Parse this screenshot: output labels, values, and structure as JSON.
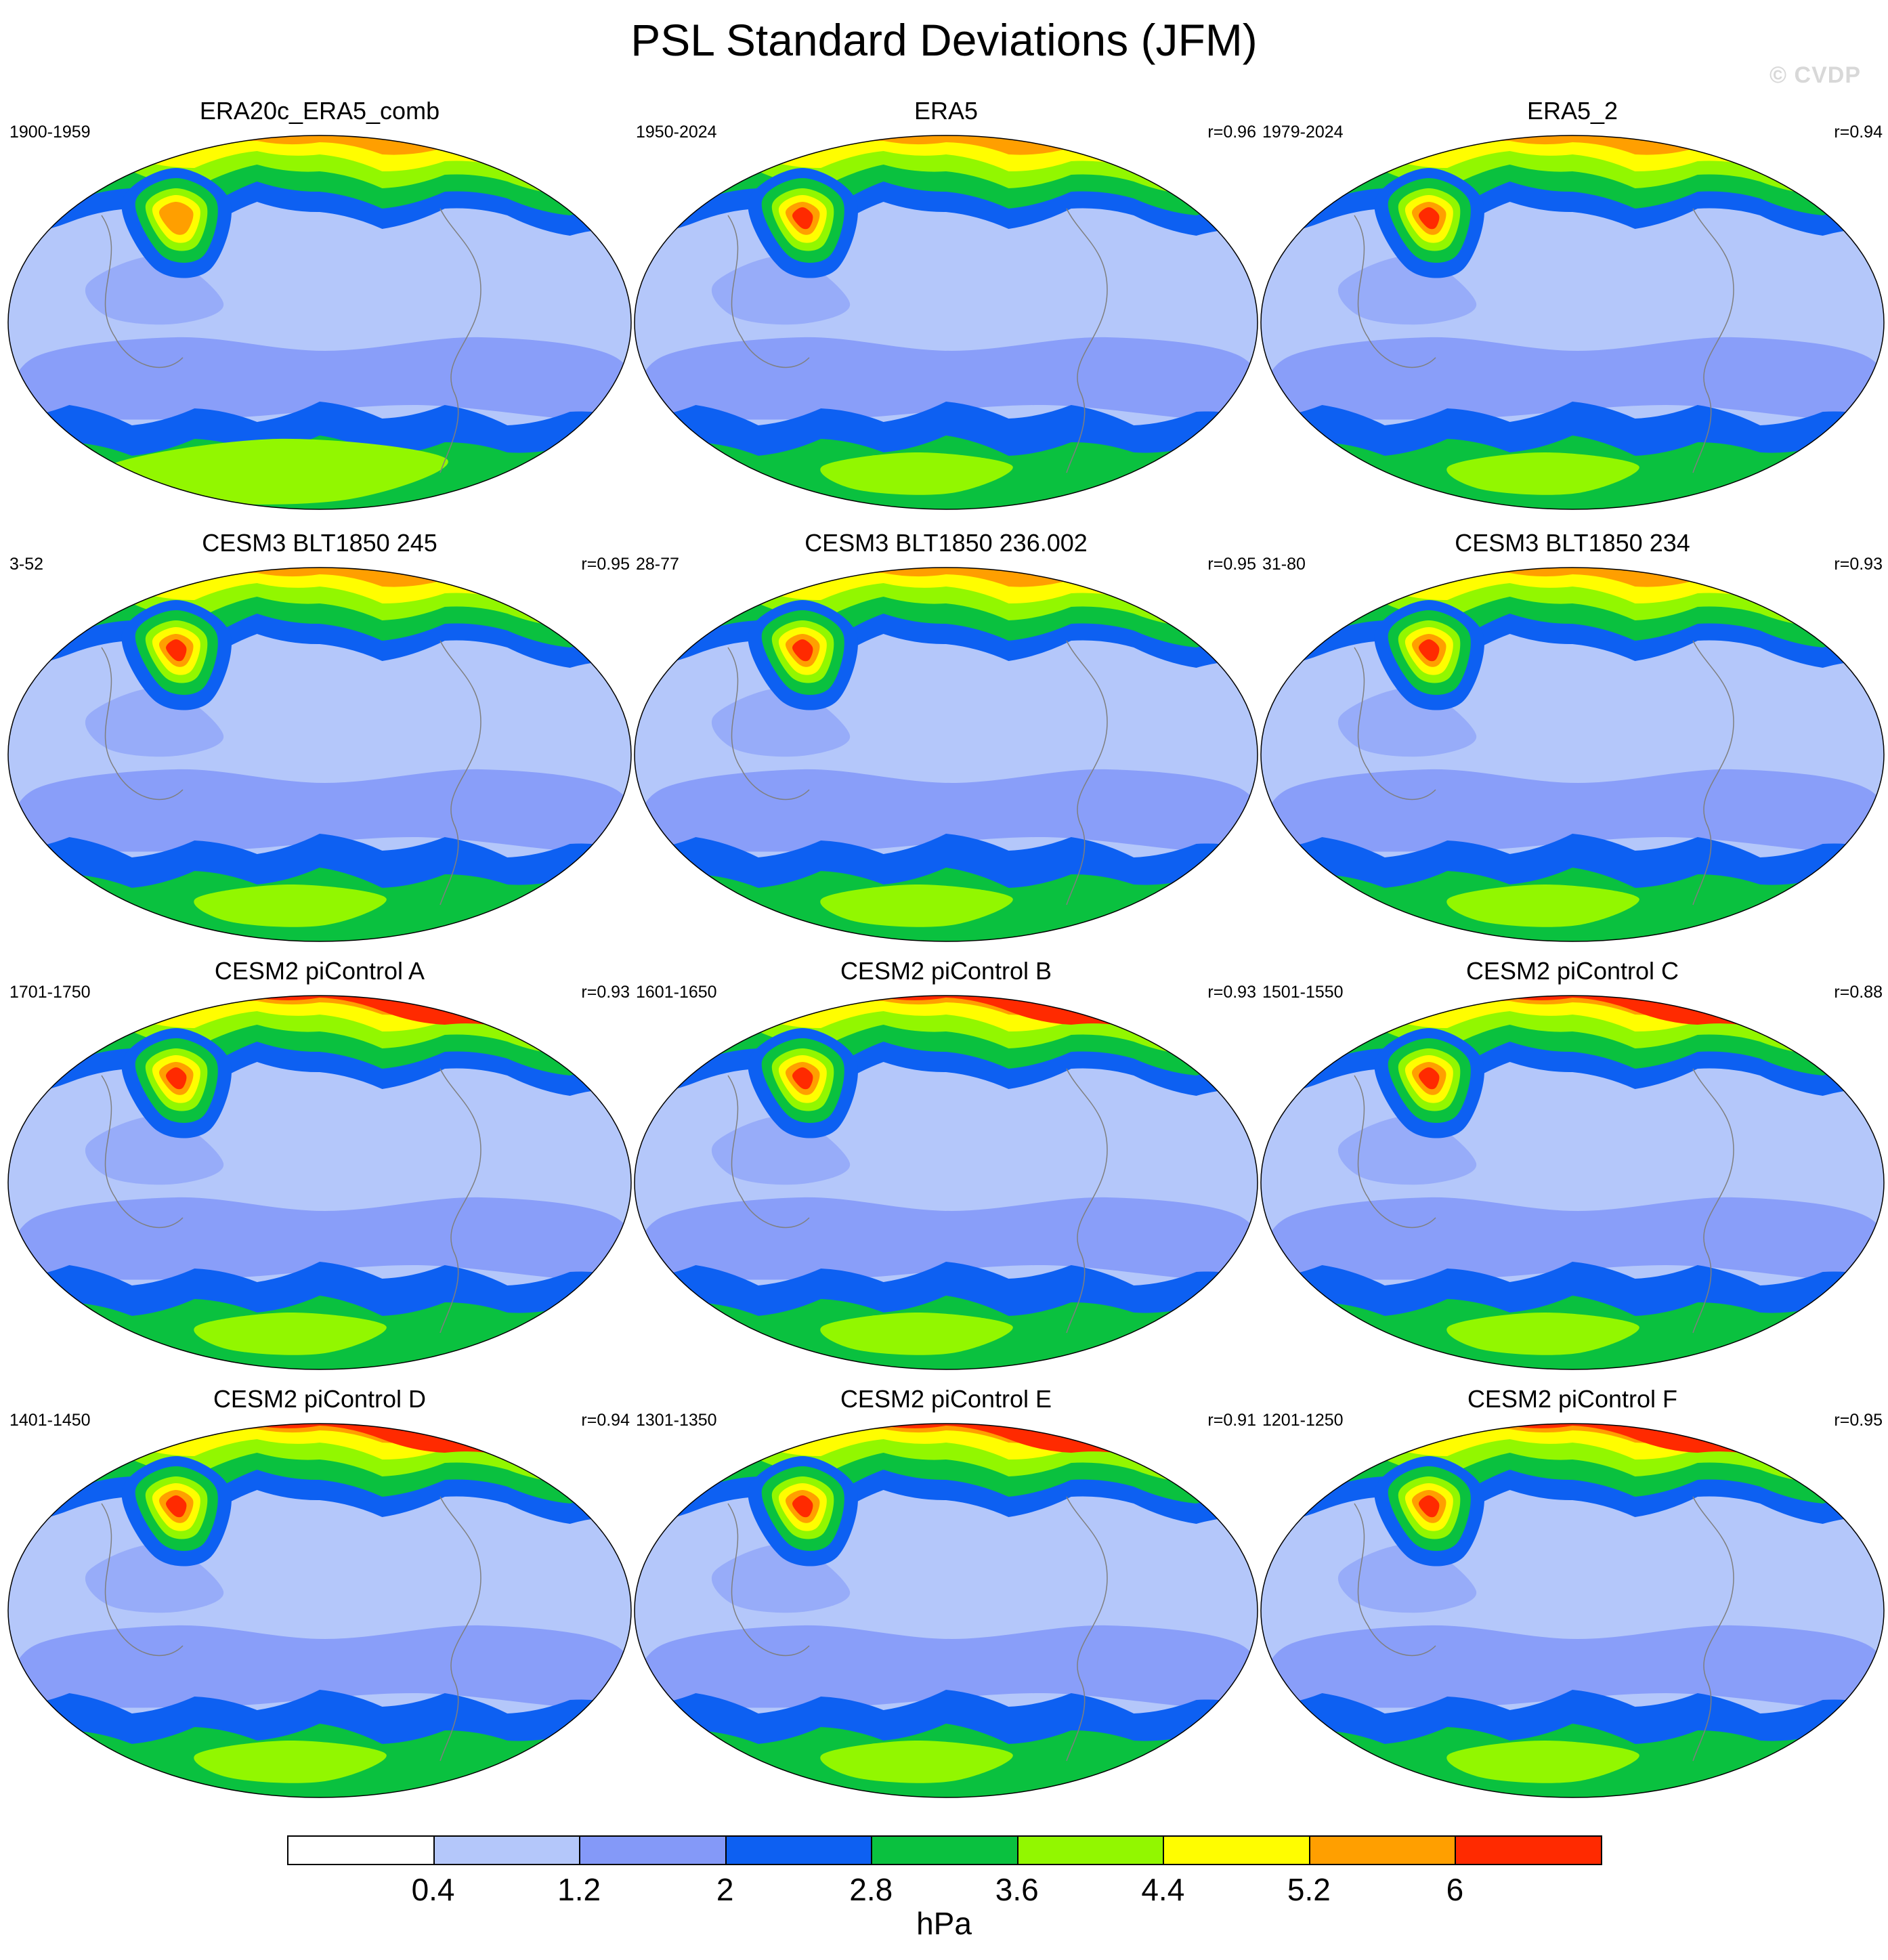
{
  "title": "PSL Standard Deviations (JFM)",
  "watermark": "© CVDP",
  "colorbar": {
    "units": "hPa",
    "levels": [
      "0.4",
      "1.2",
      "2",
      "2.8",
      "3.6",
      "4.4",
      "5.2",
      "6"
    ],
    "colors": [
      "#ffffff",
      "#b4c7fa",
      "#8499f8",
      "#0d60f2",
      "#0ac13f",
      "#92f700",
      "#fffd00",
      "#ff9f00",
      "#ff2a00"
    ]
  },
  "panels": [
    {
      "title": "ERA20c_ERA5_comb",
      "period": "1900-1959",
      "r": "",
      "level": 0
    },
    {
      "title": "ERA5",
      "period": "1950-2024",
      "r": "r=0.96",
      "level": 1
    },
    {
      "title": "ERA5_2",
      "period": "1979-2024",
      "r": "r=0.94",
      "level": 2
    },
    {
      "title": "CESM3 BLT1850 245",
      "period": "3-52",
      "r": "r=0.95",
      "level": 2
    },
    {
      "title": "CESM3 BLT1850 236.002",
      "period": "28-77",
      "r": "r=0.95",
      "level": 1
    },
    {
      "title": "CESM3 BLT1850 234",
      "period": "31-80",
      "r": "r=0.93",
      "level": 2
    },
    {
      "title": "CESM2 piControl A",
      "period": "1701-1750",
      "r": "r=0.93",
      "level": 3
    },
    {
      "title": "CESM2 piControl B",
      "period": "1601-1650",
      "r": "r=0.93",
      "level": 3
    },
    {
      "title": "CESM2 piControl C",
      "period": "1501-1550",
      "r": "r=0.88",
      "level": 3
    },
    {
      "title": "CESM2 piControl D",
      "period": "1401-1450",
      "r": "r=0.94",
      "level": 3
    },
    {
      "title": "CESM2 piControl E",
      "period": "1301-1350",
      "r": "r=0.91",
      "level": 3
    },
    {
      "title": "CESM2 piControl F",
      "period": "1201-1250",
      "r": "r=0.95",
      "level": 3
    }
  ]
}
